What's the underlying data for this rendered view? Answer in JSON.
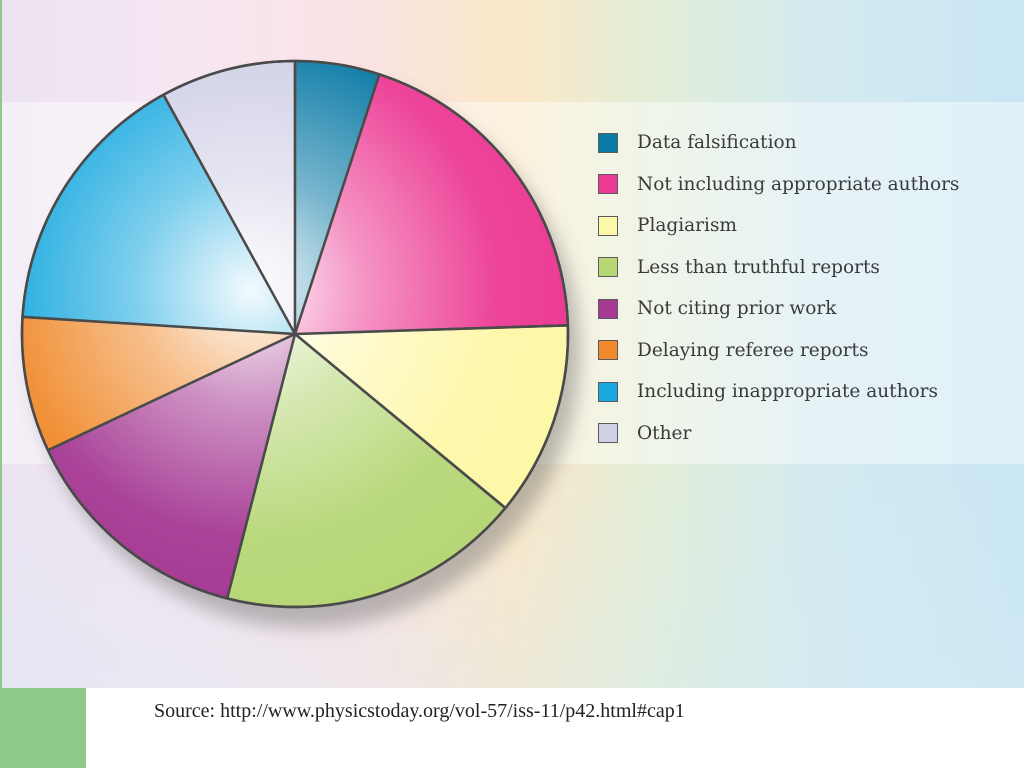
{
  "chart_data": {
    "type": "pie",
    "title": "",
    "start_angle_deg": 0,
    "direction": "clockwise",
    "legend_placement": "right",
    "slices": [
      {
        "label": "Data falsification",
        "value": 5,
        "color": "#0b7aa6"
      },
      {
        "label": "Not including appropriate authors",
        "value": 19.5,
        "color": "#ec3b94"
      },
      {
        "label": "Plagiarism",
        "value": 11.5,
        "color": "#fdf7a8"
      },
      {
        "label": "Less than truthful reports",
        "value": 18,
        "color": "#b7d777"
      },
      {
        "label": "Not citing prior work",
        "value": 14,
        "color": "#a53993"
      },
      {
        "label": "Delaying referee reports",
        "value": 8,
        "color": "#f08a2c"
      },
      {
        "label": "Including inappropriate authors",
        "value": 16,
        "color": "#19a9df"
      },
      {
        "label": "Other",
        "value": 8,
        "color": "#cfcfe6"
      }
    ]
  },
  "source_text": "Source: http://www.physicstoday.org/vol-57/iss-11/p42.html#cap1"
}
